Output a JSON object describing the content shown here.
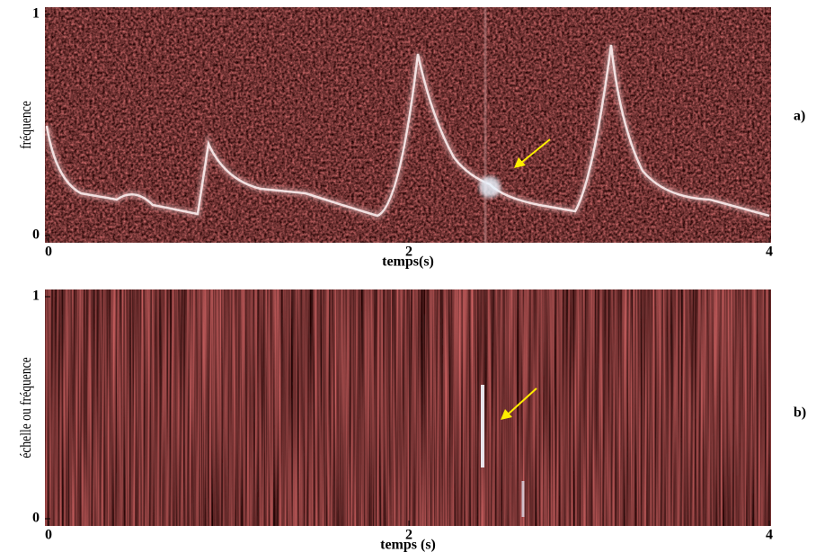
{
  "chart_data": [
    {
      "type": "spectrogram",
      "panel_label": "a)",
      "xlabel": "temps(s)",
      "ylabel": "fréquence",
      "xlim": [
        0,
        4
      ],
      "ylim": [
        0,
        1
      ],
      "xticks": [
        0,
        2,
        4
      ],
      "yticks": [
        0,
        1
      ]
    },
    {
      "type": "spectrogram",
      "panel_label": "b)",
      "xlabel": "temps (s)",
      "ylabel": "échelle ou fréquence",
      "xlim": [
        0,
        4
      ],
      "ylim": [
        0,
        1
      ],
      "xticks": [
        0,
        2,
        4
      ],
      "yticks": [
        0,
        1
      ]
    }
  ]
}
